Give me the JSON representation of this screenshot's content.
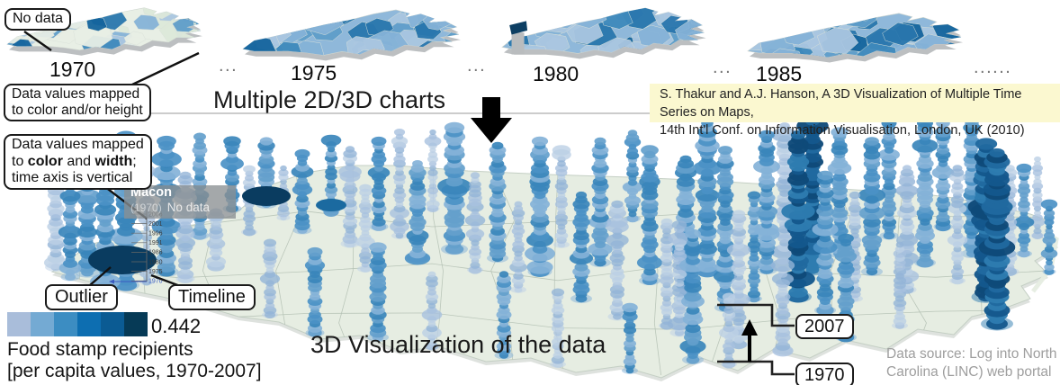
{
  "colors": {
    "nodata_green": "#e8efe5",
    "map_green": "#e6ede2",
    "county_line": "#b3bfb3",
    "extrude_gray": "#b5b8ba",
    "choropleth_blues": [
      "#aac7e1",
      "#85b3d7",
      "#5f9dca",
      "#3f8abc",
      "#2a77ad",
      "#15659e"
    ],
    "glyph_light": [
      "#bccfe5",
      "#a7c0de",
      "#93b4d7"
    ],
    "glyph_mid": [
      "#84b2d8",
      "#649fcc",
      "#4b91c5",
      "#3a86bb"
    ],
    "glyph_dark": [
      "#2e7cb0",
      "#20699f",
      "#14578c",
      "#0f4a79"
    ],
    "outlier_navy": "#0a3c60",
    "disk_mid": "#1b6aa0",
    "divider": "#9a9a9a",
    "arrow_black": "#000000",
    "timeline_blue": "#3a5bc0"
  },
  "top_row": {
    "no_data_label": "No data",
    "maps": [
      {
        "year": "1970"
      },
      {
        "year": "1975"
      },
      {
        "year": "1980"
      },
      {
        "year": "1985"
      }
    ],
    "dots_between": "...",
    "dots_end": "......",
    "callout_color_height": {
      "line1": "Data values mapped",
      "line2": "to color and/or height"
    },
    "section_label": "Multiple 2D/3D charts",
    "citation": {
      "line1": "S. Thakur and A.J. Hanson, A 3D Visualization of Multiple Time Series on Maps,",
      "line2": "14th Int'l Conf. on Information Visualisation, London, UK (2010)"
    }
  },
  "bottom": {
    "callout_color_width": {
      "line1": "Data values mapped",
      "line2_pre": "to ",
      "line2_b1": "color",
      "line2_mid": " and ",
      "line2_b2": "width",
      "line2_post": ";",
      "line3": "time axis is vertical"
    },
    "tooltip": {
      "county": "Macon",
      "year": "(1970)",
      "value": "No data"
    },
    "timeline_years": [
      "2006",
      "2001",
      "1996",
      "1991",
      "1986",
      "1980",
      "1975",
      "1970"
    ],
    "outlier_label": "Outlier",
    "timeline_label": "Timeline",
    "legend": {
      "colors": [
        "#a9bdda",
        "#74aad3",
        "#3c8dc2",
        "#0d6eb1",
        "#0b5b93",
        "#063a56"
      ],
      "max_value": "0.442",
      "title": "Food stamp recipients",
      "subtitle": "[per capita values, 1970-2007]"
    },
    "section_label": "3D Visualization of the data",
    "year_markers": {
      "top": "2007",
      "bottom": "1970"
    },
    "data_source": {
      "line1": "Data source: Log into North",
      "line2": "Carolina (LINC) web portal"
    }
  },
  "glyph_field": {
    "type": "3d-glyph-map",
    "glyphs": [
      [
        62,
        297,
        110,
        8,
        0
      ],
      [
        78,
        308,
        95,
        7,
        1
      ],
      [
        97,
        303,
        135,
        9,
        1
      ],
      [
        117,
        318,
        150,
        9,
        1
      ],
      [
        140,
        317,
        168,
        10,
        1
      ],
      [
        163,
        314,
        158,
        5,
        0
      ],
      [
        185,
        302,
        148,
        9,
        1
      ],
      [
        206,
        310,
        118,
        7,
        0
      ],
      [
        222,
        262,
        112,
        7,
        1
      ],
      [
        240,
        296,
        62,
        6,
        0
      ],
      [
        258,
        232,
        78,
        7,
        1
      ],
      [
        277,
        258,
        70,
        6,
        0
      ],
      [
        296,
        227,
        70,
        8,
        1
      ],
      [
        315,
        242,
        58,
        5,
        0
      ],
      [
        336,
        256,
        88,
        7,
        1
      ],
      [
        368,
        236,
        82,
        6,
        1
      ],
      [
        389,
        271,
        108,
        7,
        0
      ],
      [
        406,
        299,
        92,
        6,
        0
      ],
      [
        421,
        252,
        98,
        7,
        1
      ],
      [
        444,
        262,
        118,
        6,
        0
      ],
      [
        464,
        287,
        108,
        8,
        1
      ],
      [
        481,
        232,
        88,
        5,
        0
      ],
      [
        505,
        277,
        135,
        10,
        1
      ],
      [
        528,
        300,
        108,
        6,
        0
      ],
      [
        553,
        287,
        128,
        8,
        1
      ],
      [
        576,
        322,
        98,
        6,
        0
      ],
      [
        600,
        302,
        148,
        9,
        1
      ],
      [
        624,
        272,
        108,
        6,
        0
      ],
      [
        646,
        332,
        118,
        8,
        1
      ],
      [
        667,
        292,
        138,
        8,
        1
      ],
      [
        686,
        352,
        128,
        7,
        0
      ],
      [
        703,
        243,
        98,
        6,
        1
      ],
      [
        722,
        312,
        148,
        8,
        1
      ],
      [
        741,
        362,
        118,
        6,
        0
      ],
      [
        762,
        332,
        158,
        9,
        1
      ],
      [
        786,
        302,
        168,
        9,
        1
      ],
      [
        806,
        342,
        178,
        8,
        1
      ],
      [
        821,
        383,
        148,
        7,
        0
      ],
      [
        838,
        332,
        118,
        6,
        1
      ],
      [
        852,
        300,
        150,
        8,
        1
      ],
      [
        872,
        280,
        140,
        8,
        0
      ],
      [
        887,
        330,
        180,
        10,
        2
      ],
      [
        903,
        300,
        170,
        10,
        2
      ],
      [
        917,
        345,
        150,
        8,
        1
      ],
      [
        933,
        282,
        138,
        8,
        1
      ],
      [
        950,
        332,
        118,
        6,
        0
      ],
      [
        969,
        302,
        148,
        8,
        1
      ],
      [
        988,
        262,
        128,
        7,
        1
      ],
      [
        1008,
        322,
        138,
        7,
        0
      ],
      [
        1028,
        292,
        158,
        8,
        1
      ],
      [
        1048,
        252,
        118,
        7,
        1
      ],
      [
        1064,
        312,
        128,
        6,
        0
      ],
      [
        1080,
        282,
        148,
        8,
        1
      ],
      [
        1096,
        330,
        170,
        11,
        2
      ],
      [
        1108,
        360,
        190,
        12,
        2
      ],
      [
        1122,
        302,
        118,
        7,
        0
      ],
      [
        1138,
        282,
        98,
        6,
        1
      ],
      [
        1153,
        262,
        88,
        5,
        0
      ],
      [
        1166,
        302,
        78,
        5,
        1
      ],
      [
        810,
        405,
        75,
        6,
        0
      ],
      [
        770,
        400,
        140,
        8,
        1
      ],
      [
        755,
        370,
        120,
        7,
        0
      ],
      [
        560,
        395,
        90,
        7,
        1
      ],
      [
        620,
        405,
        80,
        6,
        0
      ],
      [
        700,
        412,
        70,
        6,
        1
      ],
      [
        870,
        390,
        100,
        7,
        0
      ],
      [
        940,
        375,
        110,
        8,
        1
      ],
      [
        1000,
        362,
        90,
        6,
        0
      ],
      [
        300,
        350,
        80,
        6,
        0
      ],
      [
        350,
        370,
        90,
        7,
        1
      ],
      [
        420,
        375,
        100,
        8,
        1
      ],
      [
        480,
        385,
        80,
        6,
        0
      ]
    ],
    "disks": [
      [
        136,
        289,
        38,
        16,
        3
      ],
      [
        296,
        218,
        27,
        11,
        3
      ],
      [
        368,
        228,
        17,
        7,
        2
      ]
    ]
  }
}
